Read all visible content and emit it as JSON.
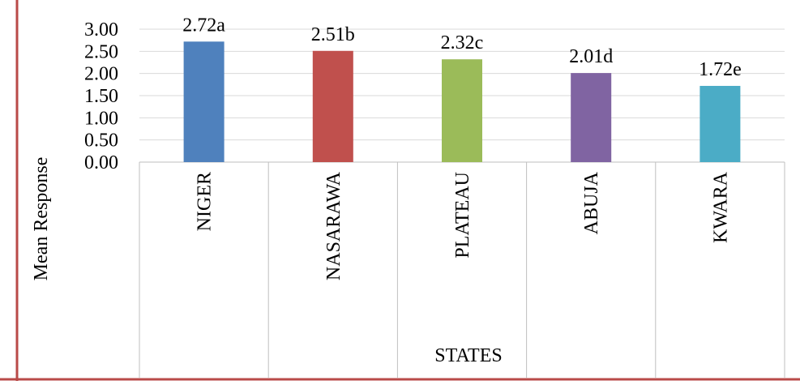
{
  "colors": {
    "frame_border": "#B94A48",
    "grid": "#D9D9D9",
    "axis": "#BFBFBF",
    "text": "#000000"
  },
  "chart_data": {
    "type": "bar",
    "title": "",
    "xlabel": "STATES",
    "ylabel": "Mean Response",
    "ylim": [
      0,
      3
    ],
    "yticks": [
      "0.00",
      "0.50",
      "1.00",
      "1.50",
      "2.00",
      "2.50",
      "3.00"
    ],
    "categories": [
      "NIGER",
      "NASARAWA",
      "PLATEAU",
      "ABUJA",
      "KWARA"
    ],
    "values": [
      2.72,
      2.51,
      2.32,
      2.01,
      1.72
    ],
    "data_labels": [
      "2.72a",
      "2.51b",
      "2.32c",
      "2.01d",
      "1.72e"
    ],
    "bar_colors": [
      "#4F81BD",
      "#C0504D",
      "#9BBB59",
      "#8064A2",
      "#4BACC6"
    ],
    "grid": true,
    "legend": "none"
  }
}
